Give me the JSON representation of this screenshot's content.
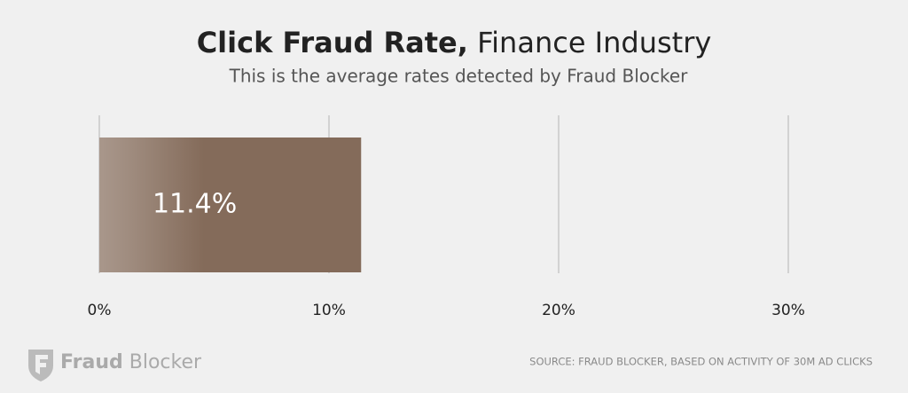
{
  "chart_data": {
    "type": "hbar",
    "title": "Click Fraud Rate,",
    "title_suffix": "Finance Industry",
    "subtitle": "This is the average rates detected by Fraud Blocker",
    "categories": [
      null
    ],
    "values": [
      11.4
    ],
    "value_labels": [
      "11.4%"
    ],
    "color": "#846b5a",
    "xlim": [
      0,
      30
    ],
    "xticks": [
      {
        "value": 0,
        "label": "0%"
      },
      {
        "value": 10,
        "label": "10%"
      },
      {
        "value": 20,
        "label": "20%"
      },
      {
        "value": 30,
        "label": "30%"
      }
    ],
    "grid": true,
    "source": "SOURCE: FRAUD BLOCKER, BASED ON ACTIVITY OF 30M AD CLICKS",
    "brand": [
      "Fraud",
      "Blocker"
    ]
  }
}
